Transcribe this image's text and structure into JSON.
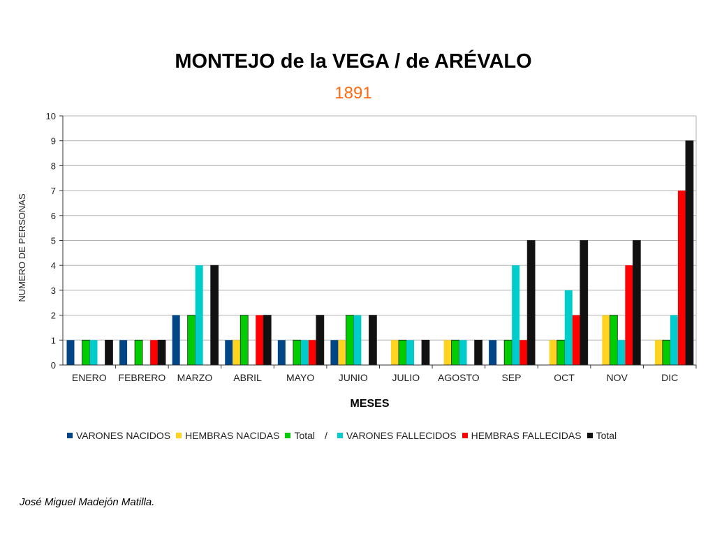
{
  "chart_data": {
    "type": "bar",
    "title": "MONTEJO de la VEGA / de ARÉVALO",
    "subtitle": "1891",
    "xlabel": "MESES",
    "ylabel": "NUMERO DE PERSONAS",
    "ylim": [
      0,
      10
    ],
    "yticks": [
      "0",
      "1",
      "2",
      "3",
      "4",
      "5",
      "6",
      "7",
      "8",
      "9",
      "10"
    ],
    "grid": true,
    "legend_position": "bottom",
    "legend_separator": "/",
    "categories": [
      "ENERO",
      "FEBRERO",
      "MARZO",
      "ABRIL",
      "MAYO",
      "JUNIO",
      "JULIO",
      "AGOSTO",
      "SEP",
      "OCT",
      "NOV",
      "DIC"
    ],
    "series": [
      {
        "name": "VARONES NACIDOS",
        "color": "#004586",
        "values": [
          1,
          1,
          2,
          1,
          1,
          1,
          0,
          0,
          1,
          0,
          0,
          0
        ]
      },
      {
        "name": "HEMBRAS NACIDAS",
        "color": "#ffd320",
        "values": [
          0,
          0,
          0,
          1,
          0,
          1,
          1,
          1,
          0,
          1,
          2,
          1
        ]
      },
      {
        "name": "Total",
        "color": "#00cc00",
        "values": [
          1,
          1,
          2,
          2,
          1,
          2,
          1,
          1,
          1,
          1,
          2,
          1
        ]
      },
      {
        "name": "VARONES FALLECIDOS",
        "color": "#00cccc",
        "values": [
          1,
          0,
          4,
          0,
          1,
          2,
          1,
          1,
          4,
          3,
          1,
          2
        ]
      },
      {
        "name": "HEMBRAS FALLECIDAS",
        "color": "#ff0000",
        "values": [
          0,
          1,
          0,
          2,
          1,
          0,
          0,
          0,
          1,
          2,
          4,
          7
        ]
      },
      {
        "name": "Total",
        "color": "#111111",
        "values": [
          1,
          1,
          4,
          2,
          2,
          2,
          1,
          1,
          5,
          5,
          5,
          9
        ]
      }
    ]
  },
  "footer": {
    "author": "José Miguel Madejón Matilla."
  }
}
